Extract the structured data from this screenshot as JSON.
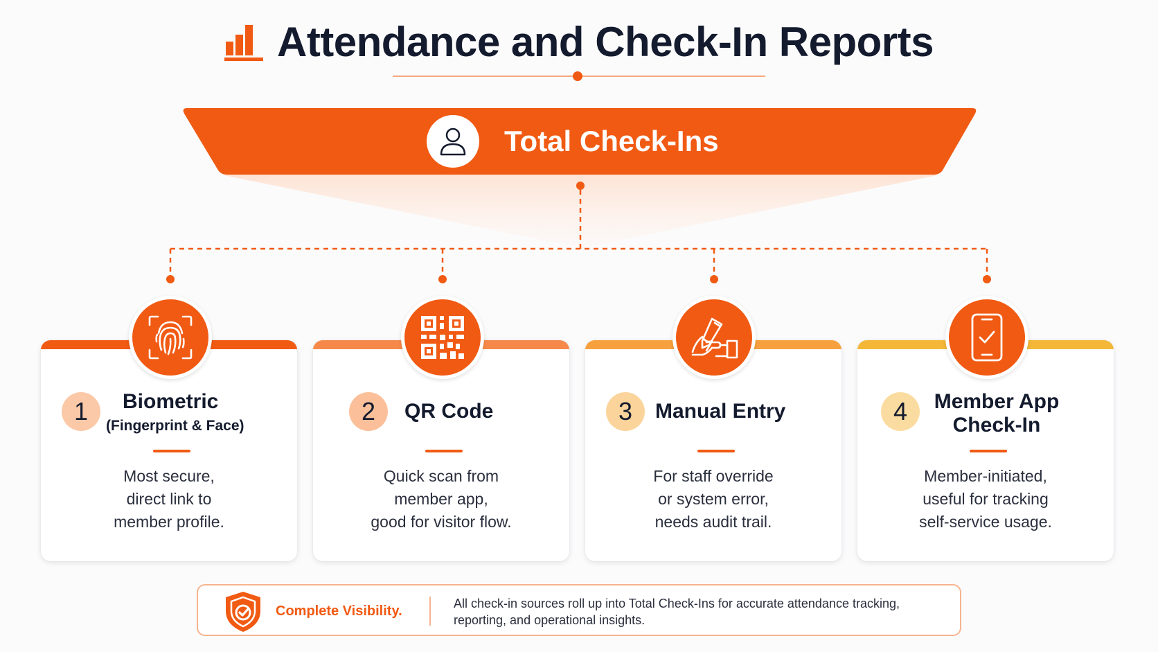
{
  "header": {
    "title": "Attendance and Check-In Reports",
    "icon": "bar-chart-icon"
  },
  "banner": {
    "label": "Total Check-Ins",
    "icon": "user-icon"
  },
  "colors": {
    "primary": "#f15a13",
    "accent_light": "#f5a77d",
    "text": "#141b2e"
  },
  "cards": [
    {
      "number": "1",
      "title": "Biometric",
      "subtitle": "(Fingerprint & Face)",
      "description": "Most secure, direct link to member profile.",
      "desc_lines": [
        "Most secure,",
        "direct link to",
        "member profile."
      ],
      "icon": "fingerprint-icon",
      "bar_color": "#f15a13",
      "badge_color": "#fbc9a8"
    },
    {
      "number": "2",
      "title": "QR Code",
      "subtitle": "",
      "description": "Quick scan from member app, good for visitor flow.",
      "desc_lines": [
        "Quick scan from",
        "member app,",
        "good for visitor flow."
      ],
      "icon": "qr-code-icon",
      "bar_color": "#f6894a",
      "badge_color": "#fbc09a"
    },
    {
      "number": "3",
      "title": "Manual Entry",
      "subtitle": "",
      "description": "For staff override or system error, needs audit trail.",
      "desc_lines": [
        "For staff override",
        "or system error,",
        "needs audit trail."
      ],
      "icon": "hand-writing-icon",
      "bar_color": "#f7a13e",
      "badge_color": "#fbd49c"
    },
    {
      "number": "4",
      "title": "Member App Check-In",
      "title_lines": [
        "Member App",
        "Check-In"
      ],
      "subtitle": "",
      "description": "Member-initiated, useful for tracking self-service usage.",
      "desc_lines": [
        "Member-initiated,",
        "useful for tracking",
        "self-service usage."
      ],
      "icon": "phone-check-icon",
      "bar_color": "#f4b738",
      "badge_color": "#fbdca0"
    }
  ],
  "footer": {
    "label": "Complete Visibility.",
    "text": "All check-in sources roll up into Total Check-Ins for accurate attendance tracking, reporting, and operational insights.",
    "icon": "shield-check-icon"
  }
}
